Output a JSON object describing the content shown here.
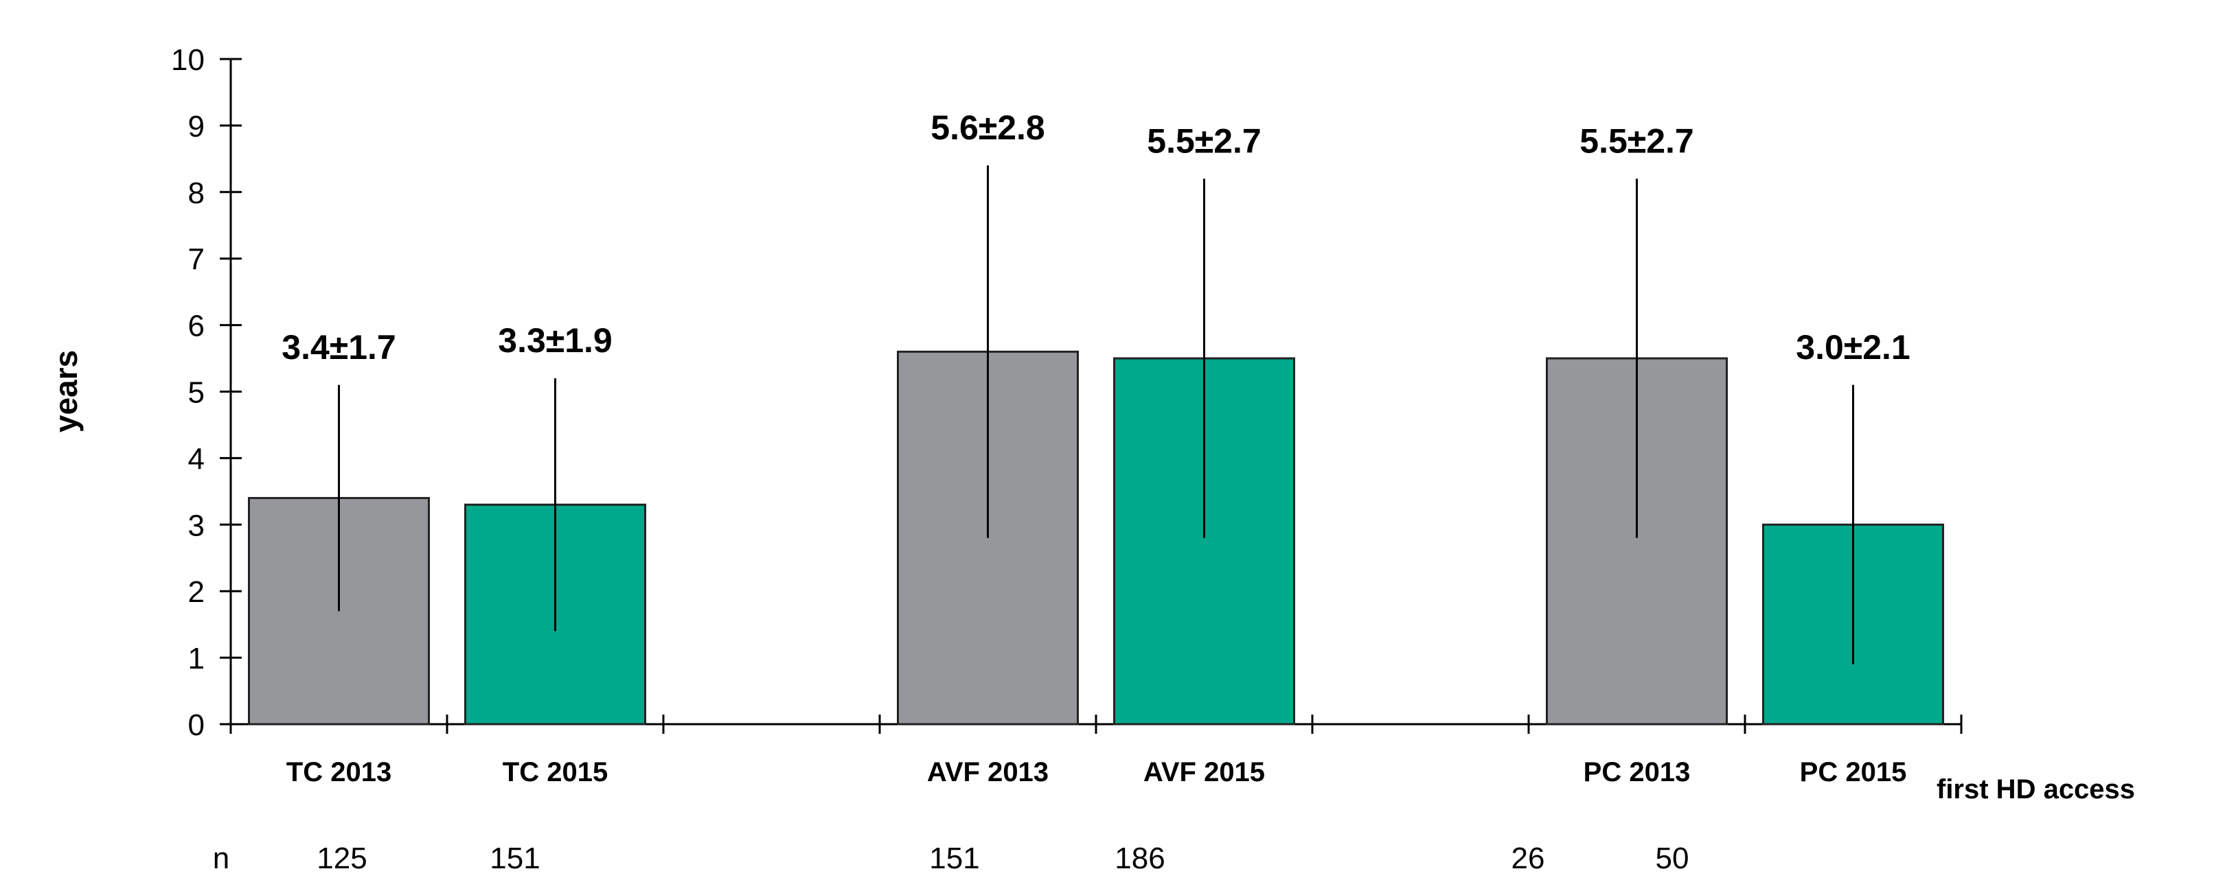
{
  "chart_data": {
    "type": "bar",
    "title": "",
    "ylabel": "years",
    "xlabel": "first HD access",
    "ylim": [
      0,
      10
    ],
    "yticks": [
      0,
      1,
      2,
      3,
      4,
      5,
      6,
      7,
      8,
      9,
      10
    ],
    "grid": false,
    "n_label": "n",
    "colors": {
      "2013": "#96979b",
      "2015": "#00a88c"
    },
    "bars": [
      {
        "category": "TC 2013",
        "year": "2013",
        "value": 3.4,
        "sd": 1.7,
        "label": "3.4±1.7",
        "n": "125"
      },
      {
        "category": "TC 2015",
        "year": "2015",
        "value": 3.3,
        "sd": 1.9,
        "label": "3.3±1.9",
        "n": "151"
      },
      {
        "category": "AVF 2013",
        "year": "2013",
        "value": 5.6,
        "sd": 2.8,
        "label": "5.6±2.8",
        "n": "151"
      },
      {
        "category": "AVF 2015",
        "year": "2015",
        "value": 5.5,
        "sd": 2.7,
        "label": "5.5±2.7",
        "n": "186"
      },
      {
        "category": "PC 2013",
        "year": "2013",
        "value": 5.5,
        "sd": 2.7,
        "label": "5.5±2.7",
        "n": "26"
      },
      {
        "category": "PC 2015",
        "year": "2015",
        "value": 3.0,
        "sd": 2.1,
        "label": "3.0±2.1",
        "n": "50"
      }
    ]
  }
}
